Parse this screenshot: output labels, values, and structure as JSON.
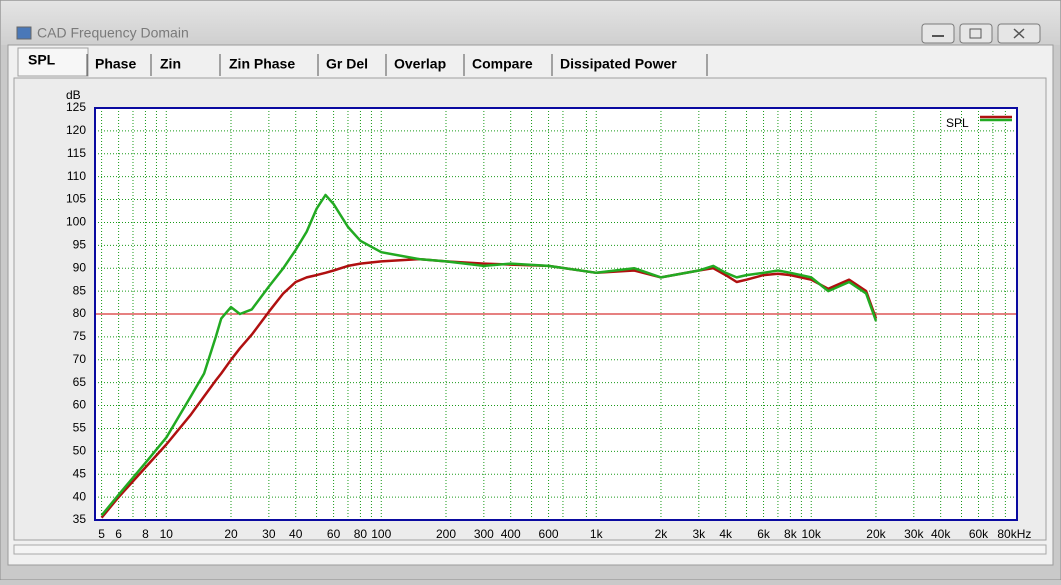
{
  "window": {
    "title": "CAD Frequency Domain",
    "tabs": [
      "SPL",
      "Phase",
      "Zin",
      "Zin Phase",
      "Gr Del",
      "Overlap",
      "Compare",
      "Dissipated Power"
    ],
    "selected_tab": 0
  },
  "chart_data": {
    "type": "line",
    "ylabel": "dB",
    "log_x": true,
    "grid": true,
    "legend": "upper right",
    "xlim": [
      4.66,
      90600
    ],
    "ylim": [
      35,
      125
    ],
    "yticks": [
      35,
      40,
      45,
      50,
      55,
      60,
      65,
      70,
      75,
      80,
      85,
      90,
      95,
      100,
      105,
      110,
      115,
      120,
      125
    ],
    "xticks": [
      5,
      6,
      8,
      10,
      20,
      30,
      40,
      60,
      80,
      100,
      200,
      300,
      400,
      600,
      {
        "value": 1000,
        "label": "1k"
      },
      {
        "value": 2000,
        "label": "2k"
      },
      {
        "value": 3000,
        "label": "3k"
      },
      {
        "value": 4000,
        "label": "4k"
      },
      {
        "value": 6000,
        "label": "6k"
      },
      {
        "value": 8000,
        "label": "8k"
      },
      {
        "value": 10000,
        "label": "10k"
      },
      {
        "value": 20000,
        "label": "20k"
      },
      {
        "value": 30000,
        "label": "30k"
      },
      {
        "value": 40000,
        "label": "40k"
      },
      {
        "value": 60000,
        "label": "60k"
      },
      {
        "value": 80000,
        "label": "80kHz"
      }
    ],
    "xminorticks": [
      7,
      9,
      50,
      70,
      90,
      500,
      700,
      900,
      5000,
      7000,
      9000,
      50000,
      70000
    ],
    "reference_line": {
      "value": 80,
      "color": "#cc0000"
    },
    "x": [
      5,
      6,
      8,
      10,
      13,
      15,
      17,
      18,
      20,
      22,
      25,
      30,
      35,
      40,
      45,
      50,
      55,
      60,
      70,
      80,
      100,
      150,
      200,
      300,
      400,
      600,
      1000,
      1500,
      2000,
      3000,
      3500,
      4000,
      4500,
      5000,
      6000,
      7000,
      8000,
      10000,
      12000,
      15000,
      18000,
      20000
    ],
    "series": [
      {
        "name": "SPL",
        "color": "#b01010",
        "values": [
          35.5,
          40,
          46.5,
          51.5,
          58,
          62,
          65.5,
          67,
          70,
          72.5,
          75.5,
          80.5,
          84.5,
          87,
          88,
          88.5,
          89,
          89.5,
          90.5,
          91,
          91.5,
          92,
          91.5,
          91,
          90.8,
          90.5,
          89,
          89.5,
          88,
          89.5,
          90,
          88.5,
          87,
          87.5,
          88.5,
          88.8,
          88.5,
          87.5,
          85.5,
          87.5,
          85,
          79
        ]
      },
      {
        "color": "#22aa22",
        "values": [
          36,
          40.5,
          47.5,
          53,
          62,
          67,
          75,
          79,
          81.5,
          80,
          81,
          86,
          90,
          94,
          98,
          103,
          106,
          104,
          99,
          96,
          93.5,
          92,
          91.5,
          90.5,
          91,
          90.5,
          89,
          90,
          88,
          89.5,
          90.5,
          89,
          88,
          88.5,
          89,
          89.5,
          89,
          88,
          85,
          87,
          84.5,
          78.5
        ]
      }
    ]
  }
}
